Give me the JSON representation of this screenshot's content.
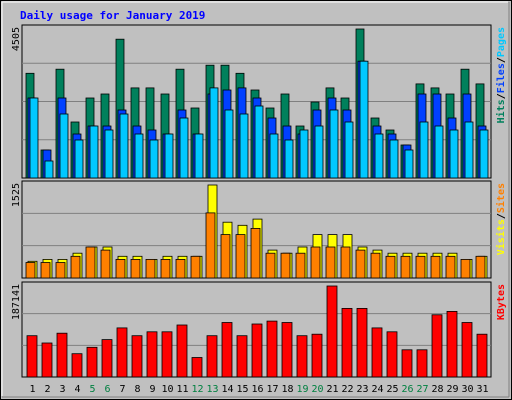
{
  "chart_data": {
    "type": "bar",
    "title": "Daily usage for January 2019",
    "colors": {
      "background": "#c0c0c0",
      "title": "#0000ff",
      "hits": "#00805c",
      "files": "#0040ff",
      "pages": "#00c8ff",
      "visits": "#ffff00",
      "sites": "#ff8000",
      "kbytes": "#ff0000",
      "weekend_label": "#008040",
      "weekday_label": "#000000"
    },
    "x": {
      "categories": [
        "1",
        "2",
        "3",
        "4",
        "5",
        "6",
        "7",
        "8",
        "9",
        "10",
        "11",
        "12",
        "13",
        "14",
        "15",
        "16",
        "17",
        "18",
        "19",
        "20",
        "21",
        "22",
        "23",
        "24",
        "25",
        "26",
        "27",
        "28",
        "29",
        "30",
        "31"
      ],
      "weekend_days": [
        "5",
        "6",
        "12",
        "13",
        "19",
        "20",
        "26",
        "27"
      ]
    },
    "panels": [
      {
        "id": "hits-files-pages",
        "ytick_label": "4505",
        "ylim": [
          0,
          4505
        ],
        "legend": [
          {
            "text": "Hits",
            "color": "#00805c"
          },
          {
            "text": "/",
            "color": "#000000"
          },
          {
            "text": "Files",
            "color": "#0040ff"
          },
          {
            "text": "/",
            "color": "#000000"
          },
          {
            "text": "Pages",
            "color": "#00c8ff"
          }
        ],
        "series": [
          {
            "name": "Hits",
            "values": [
              3167,
              847,
              3289,
              1694,
              2420,
              2541,
              4198,
              2723,
              2723,
              2541,
              3289,
              2117,
              3409,
              3409,
              3167,
              2662,
              2117,
              2541,
              1573,
              2299,
              2723,
              2420,
              4505,
              1815,
              1452,
              998,
              2844,
              2723,
              2541,
              3289,
              2844
            ]
          },
          {
            "name": "Files",
            "values": [
              2420,
              847,
              2420,
              1331,
              1573,
              1573,
              2057,
              1573,
              1452,
              1331,
              2057,
              1331,
              2541,
              2662,
              2723,
              2420,
              1815,
              1573,
              1331,
              2057,
              2420,
              2057,
              3530,
              1573,
              1331,
              998,
              2541,
              2541,
              1815,
              2541,
              1573
            ]
          },
          {
            "name": "Pages",
            "values": [
              2420,
              514,
              1936,
              1150,
              1573,
              1452,
              1936,
              1331,
              1150,
              1331,
              1815,
              1331,
              2723,
              2057,
              1936,
              2178,
              1331,
              1150,
              1452,
              1573,
              2057,
              1694,
              3530,
              1331,
              1150,
              847,
              1694,
              1573,
              1452,
              1694,
              1452
            ]
          }
        ]
      },
      {
        "id": "visits-sites",
        "ytick_label": "1525",
        "ylim": [
          0,
          1525
        ],
        "legend": [
          {
            "text": "Visits",
            "color": "#ffff00"
          },
          {
            "text": "/",
            "color": "#000000"
          },
          {
            "text": "Sites",
            "color": "#ff8000"
          }
        ],
        "series": [
          {
            "name": "Visits",
            "values": [
              274,
              305,
              305,
              407,
              508,
              508,
              356,
              356,
              305,
              356,
              356,
              356,
              1525,
              915,
              864,
              966,
              458,
              407,
              508,
              712,
              712,
              712,
              508,
              458,
              407,
              407,
              407,
              407,
              407,
              305,
              356
            ]
          },
          {
            "name": "Sites",
            "values": [
              254,
              254,
              254,
              356,
              508,
              458,
              305,
              305,
              305,
              305,
              305,
              356,
              1068,
              712,
              712,
              813,
              407,
              407,
              407,
              508,
              508,
              508,
              458,
              407,
              356,
              356,
              356,
              356,
              356,
              305,
              356
            ]
          }
        ]
      },
      {
        "id": "kbytes",
        "ytick_label": "187141",
        "ylim": [
          0,
          187141
        ],
        "legend": [
          {
            "text": "KBytes",
            "color": "#ff0000"
          }
        ],
        "series": [
          {
            "name": "KBytes",
            "values": [
              85000,
              70000,
              90000,
              48000,
              61000,
              77000,
              101000,
              85000,
              93000,
              93000,
              107000,
              40000,
              85000,
              112000,
              85000,
              109000,
              115000,
              112000,
              85000,
              88000,
              187141,
              141000,
              141000,
              101000,
              93000,
              56000,
              56000,
              128000,
              135000,
              112000,
              88000
            ]
          }
        ]
      }
    ]
  }
}
